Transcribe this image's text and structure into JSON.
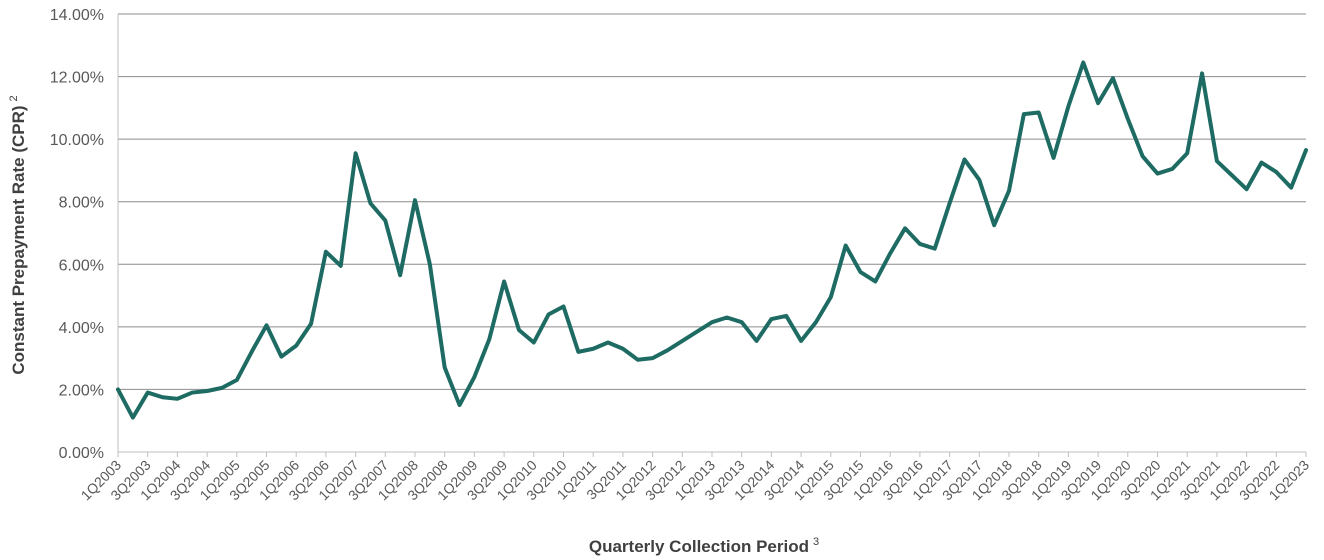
{
  "chart_data": {
    "type": "line",
    "xlabel": "Quarterly Collection Period",
    "xlabel_superscript": "3",
    "ylabel": "Constant Prepayment Rate (CPR)",
    "ylabel_superscript": "2",
    "ylim": [
      0,
      14
    ],
    "y_ticks": [
      "0.00%",
      "2.00%",
      "4.00%",
      "6.00%",
      "8.00%",
      "10.00%",
      "12.00%",
      "14.00%"
    ],
    "grid": "horizontal",
    "line_color": "#1d6b63",
    "x": [
      "1Q2003",
      "2Q2003",
      "3Q2003",
      "4Q2003",
      "1Q2004",
      "2Q2004",
      "3Q2004",
      "4Q2004",
      "1Q2005",
      "2Q2005",
      "3Q2005",
      "4Q2005",
      "1Q2006",
      "2Q2006",
      "3Q2006",
      "4Q2006",
      "1Q2007",
      "2Q2007",
      "3Q2007",
      "4Q2007",
      "1Q2008",
      "2Q2008",
      "3Q2008",
      "4Q2008",
      "1Q2009",
      "2Q2009",
      "3Q2009",
      "4Q2009",
      "1Q2010",
      "2Q2010",
      "3Q2010",
      "4Q2010",
      "1Q2011",
      "2Q2011",
      "3Q2011",
      "4Q2011",
      "1Q2012",
      "2Q2012",
      "3Q2012",
      "4Q2012",
      "1Q2013",
      "2Q2013",
      "3Q2013",
      "4Q2013",
      "1Q2014",
      "2Q2014",
      "3Q2014",
      "4Q2014",
      "1Q2015",
      "2Q2015",
      "3Q2015",
      "4Q2015",
      "1Q2016",
      "2Q2016",
      "3Q2016",
      "4Q2016",
      "1Q2017",
      "2Q2017",
      "3Q2017",
      "4Q2017",
      "1Q2018",
      "2Q2018",
      "3Q2018",
      "4Q2018",
      "1Q2019",
      "2Q2019",
      "3Q2019",
      "4Q2019",
      "1Q2020",
      "2Q2020",
      "3Q2020",
      "4Q2020",
      "1Q2021",
      "2Q2021",
      "3Q2021",
      "4Q2021",
      "1Q2022",
      "2Q2022",
      "3Q2022",
      "4Q2022",
      "1Q2023"
    ],
    "x_tick_labels": [
      "1Q2003",
      "3Q2003",
      "1Q2004",
      "3Q2004",
      "1Q2005",
      "3Q2005",
      "1Q2006",
      "3Q2006",
      "1Q2007",
      "3Q2007",
      "1Q2008",
      "3Q2008",
      "1Q2009",
      "3Q2009",
      "1Q2010",
      "3Q2010",
      "1Q2011",
      "3Q2011",
      "1Q2012",
      "3Q2012",
      "1Q2013",
      "3Q2013",
      "1Q2014",
      "3Q2014",
      "1Q2015",
      "3Q2015",
      "1Q2016",
      "3Q2016",
      "1Q2017",
      "3Q2017",
      "1Q2018",
      "3Q2018",
      "1Q2019",
      "3Q2019",
      "1Q2020",
      "3Q2020",
      "1Q2021",
      "3Q2021",
      "1Q2022",
      "3Q2022",
      "1Q2023"
    ],
    "series": [
      {
        "values": [
          2.0,
          1.1,
          1.9,
          1.75,
          1.7,
          1.9,
          1.95,
          2.05,
          2.3,
          3.2,
          4.05,
          3.05,
          3.4,
          4.1,
          6.4,
          5.95,
          9.55,
          7.95,
          7.4,
          5.65,
          8.05,
          6.0,
          2.7,
          1.5,
          2.4,
          3.6,
          5.45,
          3.9,
          3.5,
          4.4,
          4.65,
          3.2,
          3.3,
          3.5,
          3.3,
          2.95,
          3.0,
          3.25,
          3.55,
          3.85,
          4.15,
          4.3,
          4.15,
          3.55,
          4.25,
          4.35,
          3.55,
          4.15,
          4.95,
          6.6,
          5.75,
          5.45,
          6.35,
          7.15,
          6.65,
          6.5,
          7.95,
          9.35,
          8.7,
          7.25,
          8.35,
          10.8,
          10.85,
          9.4,
          11.05,
          12.45,
          11.15,
          11.95,
          10.65,
          9.45,
          8.9,
          9.05,
          9.55,
          12.1,
          9.3,
          8.85,
          8.4,
          9.25,
          8.95,
          8.45,
          9.65
        ]
      }
    ]
  }
}
